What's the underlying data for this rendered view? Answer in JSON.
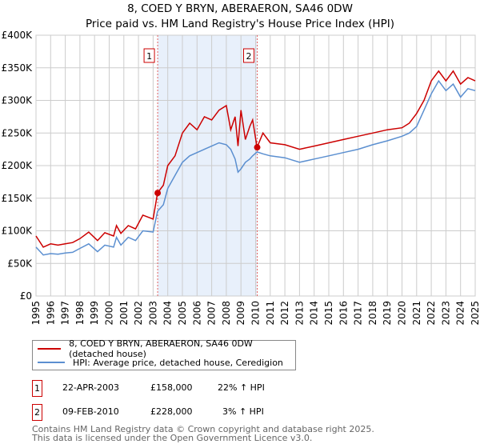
{
  "chart_data": {
    "type": "line",
    "title": "8, COED Y BRYN, ABERAERON, SA46 0DW",
    "subtitle": "Price paid vs. HM Land Registry's House Price Index (HPI)",
    "ylim": [
      0,
      400000
    ],
    "xlim": [
      1995,
      2025
    ],
    "yticks": [
      {
        "v": 0,
        "label": "£0"
      },
      {
        "v": 50000,
        "label": "£50K"
      },
      {
        "v": 100000,
        "label": "£100K"
      },
      {
        "v": 150000,
        "label": "£150K"
      },
      {
        "v": 200000,
        "label": "£200K"
      },
      {
        "v": 250000,
        "label": "£250K"
      },
      {
        "v": 300000,
        "label": "£300K"
      },
      {
        "v": 350000,
        "label": "£350K"
      },
      {
        "v": 400000,
        "label": "£400K"
      }
    ],
    "xticks": [
      "1995",
      "1996",
      "1997",
      "1998",
      "1999",
      "2000",
      "2001",
      "2002",
      "2003",
      "2004",
      "2005",
      "2006",
      "2007",
      "2008",
      "2009",
      "2010",
      "2011",
      "2012",
      "2013",
      "2014",
      "2015",
      "2016",
      "2017",
      "2018",
      "2019",
      "2020",
      "2021",
      "2022",
      "2023",
      "2024",
      "2025"
    ],
    "grid": true,
    "series": [
      {
        "name": "8, COED Y BRYN, ABERAERON, SA46 0DW (detached house)",
        "color": "#cc0000",
        "x": [
          1995,
          1995.5,
          1996,
          1996.5,
          1997,
          1997.5,
          1998,
          1998.6,
          1999.2,
          1999.7,
          2000.3,
          2000.5,
          2000.8,
          2001.3,
          2001.8,
          2002.3,
          2003,
          2003.3,
          2003.7,
          2004,
          2004.5,
          2005,
          2005.5,
          2006,
          2006.5,
          2007,
          2007.5,
          2008,
          2008.3,
          2008.6,
          2008.8,
          2009,
          2009.3,
          2009.6,
          2009.8,
          2010.1,
          2010.5,
          2011,
          2012,
          2013,
          2014,
          2015,
          2016,
          2017,
          2018,
          2019,
          2020,
          2020.5,
          2021,
          2021.5,
          2022,
          2022.5,
          2023,
          2023.5,
          2024,
          2024.5,
          2025
        ],
        "values": [
          92000,
          75000,
          80000,
          78000,
          80000,
          82000,
          88000,
          98000,
          85000,
          97000,
          92000,
          108000,
          96000,
          108000,
          103000,
          124000,
          118000,
          158000,
          170000,
          200000,
          215000,
          250000,
          265000,
          255000,
          275000,
          270000,
          285000,
          292000,
          255000,
          275000,
          230000,
          285000,
          240000,
          260000,
          270000,
          228000,
          250000,
          235000,
          232000,
          225000,
          230000,
          235000,
          240000,
          245000,
          250000,
          255000,
          258000,
          265000,
          280000,
          300000,
          330000,
          345000,
          330000,
          345000,
          325000,
          335000,
          330000
        ]
      },
      {
        "name": "HPI: Average price, detached house, Ceredigion",
        "color": "#5b8fd0",
        "x": [
          1995,
          1995.5,
          1996,
          1996.5,
          1997,
          1997.5,
          1998,
          1998.6,
          1999.2,
          1999.7,
          2000.3,
          2000.5,
          2000.8,
          2001.3,
          2001.8,
          2002.3,
          2003,
          2003.3,
          2003.7,
          2004,
          2004.5,
          2005,
          2005.5,
          2006,
          2006.5,
          2007,
          2007.5,
          2008,
          2008.3,
          2008.6,
          2008.8,
          2009,
          2009.3,
          2009.6,
          2009.8,
          2010.1,
          2010.5,
          2011,
          2012,
          2013,
          2014,
          2015,
          2016,
          2017,
          2018,
          2019,
          2020,
          2020.5,
          2021,
          2021.5,
          2022,
          2022.5,
          2023,
          2023.5,
          2024,
          2024.5,
          2025
        ],
        "values": [
          75000,
          63000,
          65000,
          64000,
          66000,
          67000,
          73000,
          80000,
          68000,
          78000,
          75000,
          90000,
          78000,
          90000,
          85000,
          100000,
          98000,
          130000,
          140000,
          165000,
          185000,
          205000,
          215000,
          220000,
          225000,
          230000,
          235000,
          232000,
          225000,
          210000,
          190000,
          195000,
          205000,
          210000,
          215000,
          221000,
          218000,
          215000,
          212000,
          205000,
          210000,
          215000,
          220000,
          225000,
          232000,
          238000,
          245000,
          250000,
          260000,
          285000,
          310000,
          330000,
          315000,
          325000,
          305000,
          318000,
          315000
        ]
      }
    ],
    "sales": [
      {
        "num": "1",
        "x": 2003.31,
        "date": "22-APR-2003",
        "price": "£158,000",
        "value": 158000,
        "hpi": "22% ↑ HPI"
      },
      {
        "num": "2",
        "x": 2010.11,
        "date": "09-FEB-2010",
        "price": "£228,000",
        "value": 228000,
        "hpi": "3% ↑ HPI"
      }
    ],
    "footer": [
      "Contains HM Land Registry data © Crown copyright and database right 2025.",
      "This data is licensed under the Open Government Licence v3.0."
    ]
  }
}
